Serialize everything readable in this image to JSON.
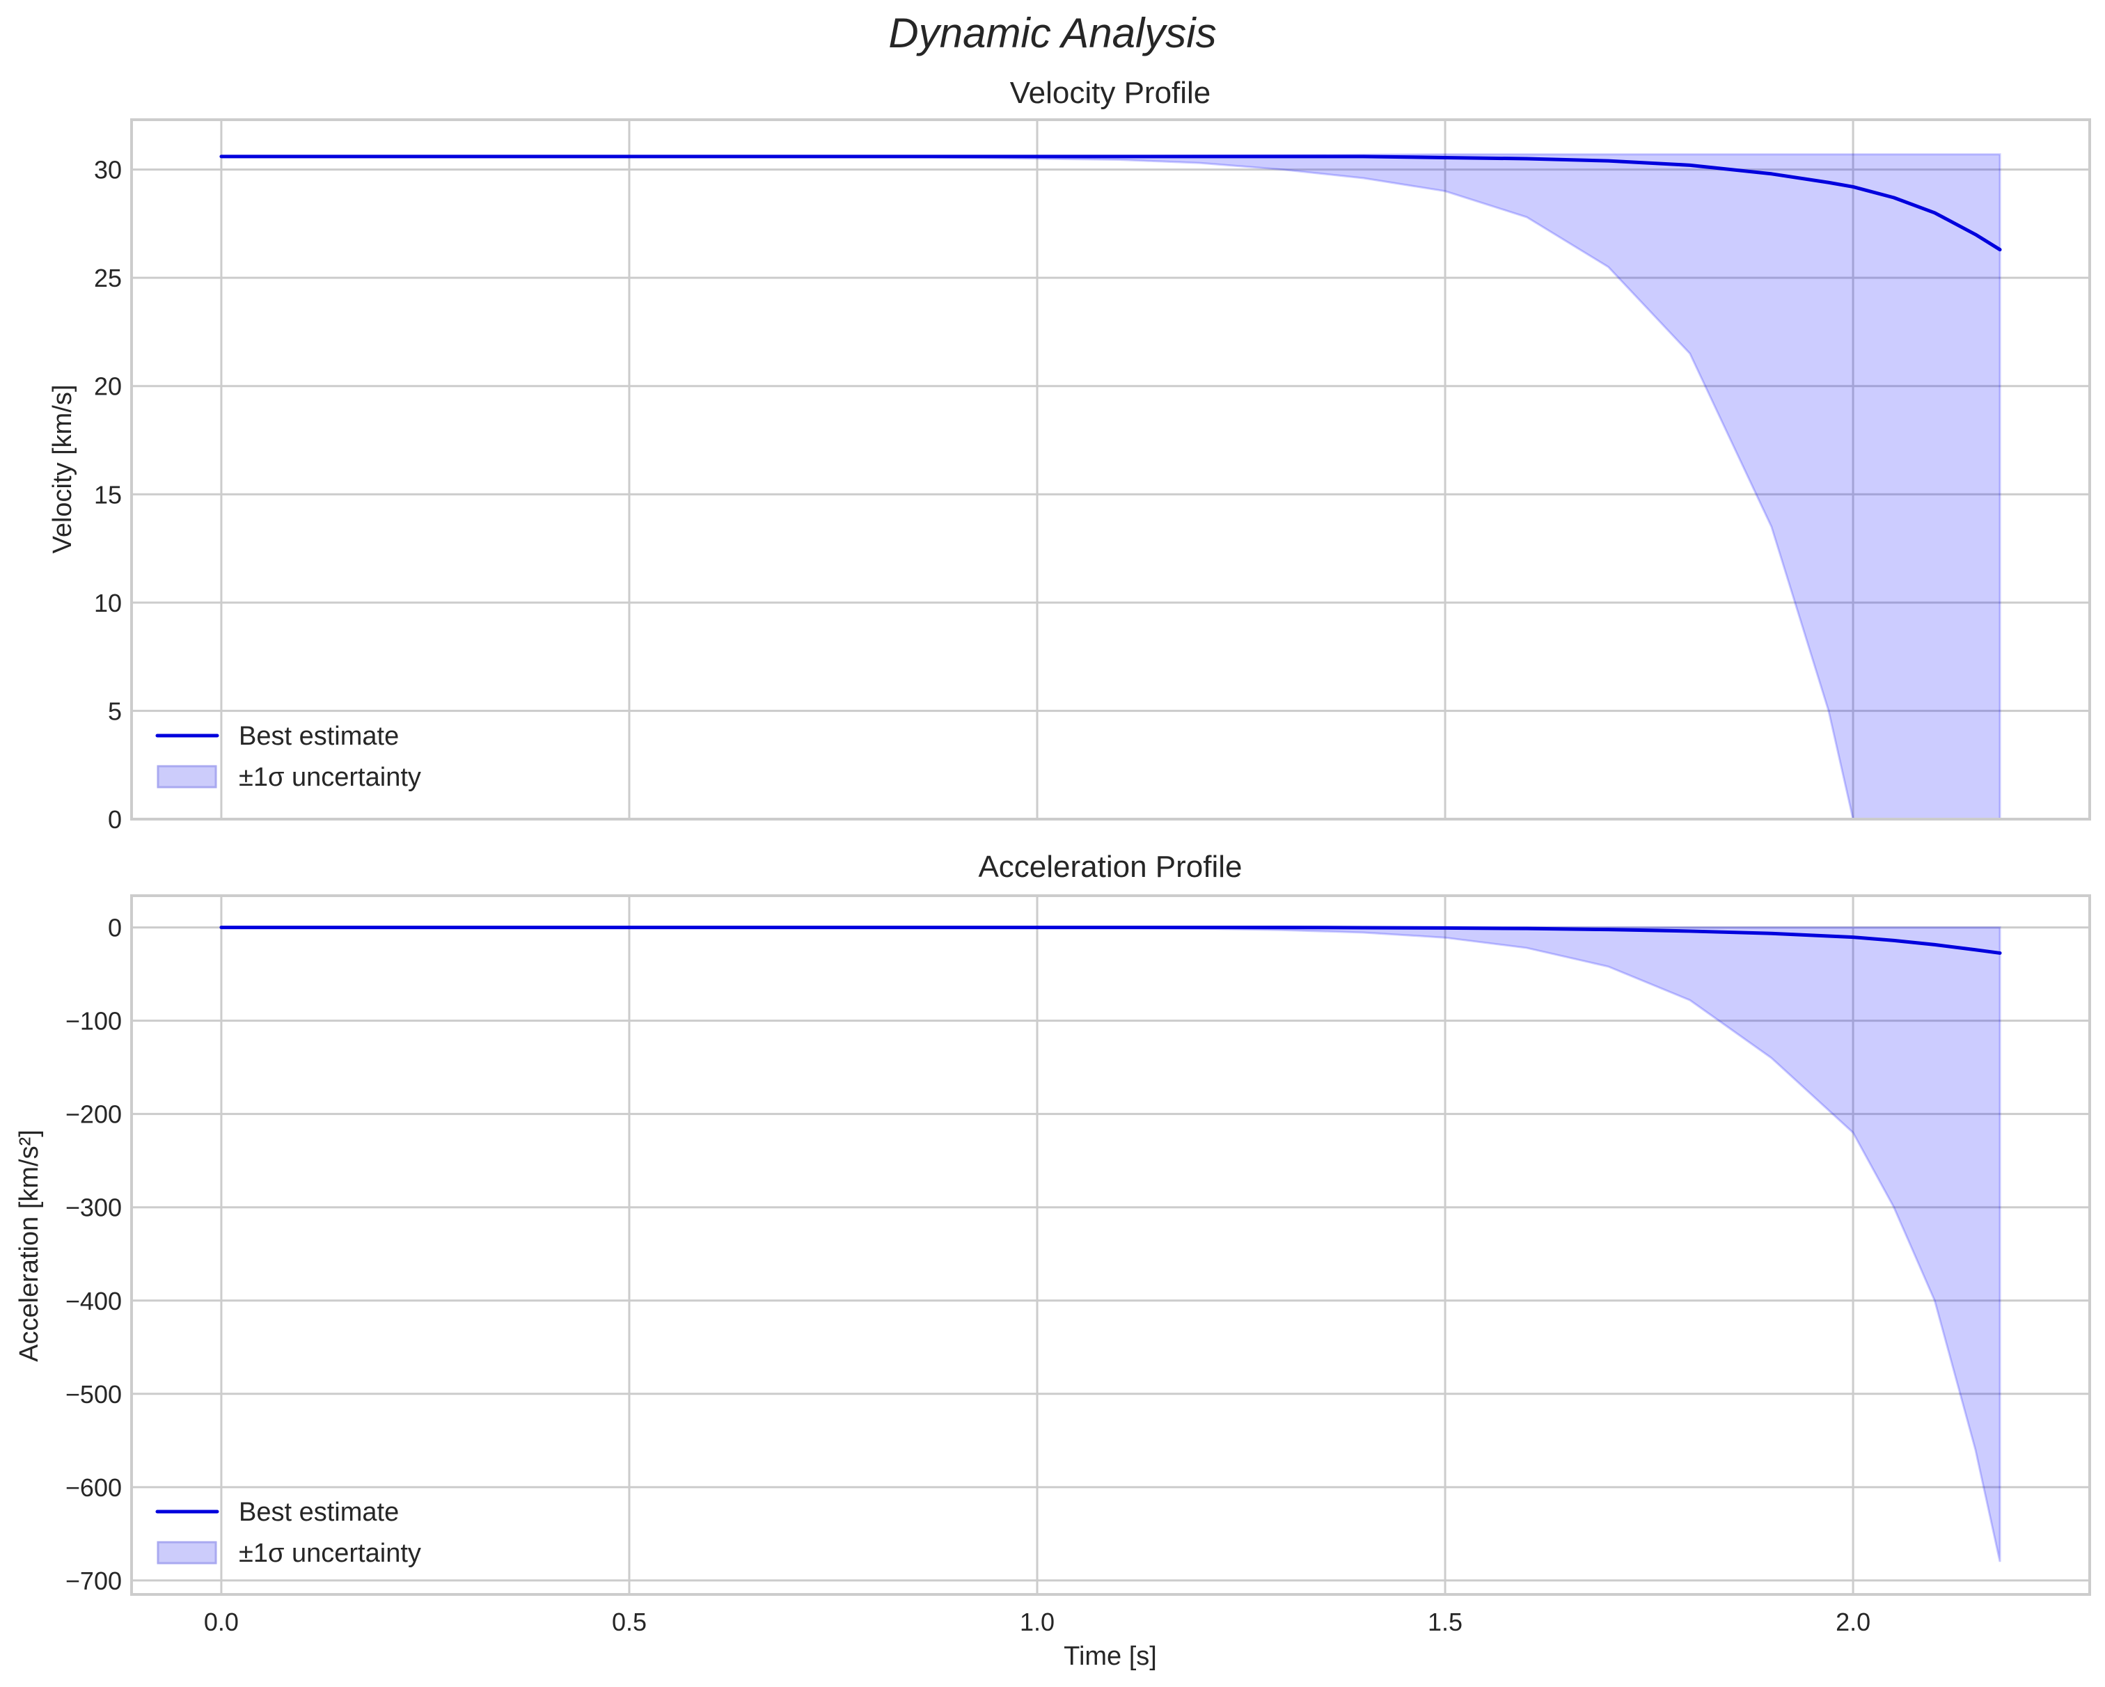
{
  "figure": {
    "suptitle": "Dynamic Analysis"
  },
  "chart_data": [
    {
      "type": "line",
      "title": "Velocity Profile",
      "xlabel": "",
      "ylabel": "Velocity [km/s]",
      "xlim": [
        -0.11,
        2.29
      ],
      "ylim": [
        0,
        32.3
      ],
      "xticks": [
        0.0,
        0.5,
        1.0,
        1.5,
        2.0
      ],
      "xtick_labels": [
        "0.0",
        "0.5",
        "1.0",
        "1.5",
        "2.0"
      ],
      "yticks": [
        0,
        5,
        10,
        15,
        20,
        25,
        30
      ],
      "ytick_labels": [
        "0",
        "5",
        "10",
        "15",
        "20",
        "25",
        "30"
      ],
      "grid": true,
      "legend": {
        "position": "lower left",
        "entries": [
          "Best estimate",
          "±1σ uncertainty"
        ]
      },
      "x": [
        0.0,
        0.2,
        0.4,
        0.6,
        0.8,
        1.0,
        1.1,
        1.2,
        1.3,
        1.4,
        1.5,
        1.6,
        1.7,
        1.8,
        1.9,
        1.97,
        2.0,
        2.05,
        2.1,
        2.15,
        2.18
      ],
      "series": [
        {
          "name": "Best estimate",
          "color": "#0000dd",
          "values": [
            30.6,
            30.6,
            30.6,
            30.6,
            30.6,
            30.6,
            30.6,
            30.6,
            30.6,
            30.6,
            30.55,
            30.5,
            30.4,
            30.2,
            29.8,
            29.4,
            29.2,
            28.7,
            28.0,
            27.0,
            26.3
          ]
        },
        {
          "name": "±1σ uncertainty (upper)",
          "color": "#0000ff",
          "alpha": 0.2,
          "values": [
            30.6,
            30.6,
            30.6,
            30.6,
            30.6,
            30.6,
            30.62,
            30.64,
            30.66,
            30.68,
            30.7,
            30.7,
            30.7,
            30.7,
            30.7,
            30.7,
            30.7,
            30.7,
            30.7,
            30.7,
            30.7
          ]
        },
        {
          "name": "±1σ uncertainty (lower)",
          "color": "#0000ff",
          "alpha": 0.2,
          "values": [
            30.6,
            30.6,
            30.6,
            30.6,
            30.6,
            30.5,
            30.45,
            30.3,
            30.0,
            29.6,
            29.0,
            27.8,
            25.5,
            21.5,
            13.5,
            5.0,
            0,
            0,
            0,
            0,
            0
          ]
        }
      ]
    },
    {
      "type": "line",
      "title": "Acceleration Profile",
      "xlabel": "Time [s]",
      "ylabel": "Acceleration [km/s²]",
      "xlim": [
        -0.11,
        2.29
      ],
      "ylim": [
        -715,
        34
      ],
      "xticks": [
        0.0,
        0.5,
        1.0,
        1.5,
        2.0
      ],
      "xtick_labels": [
        "0.0",
        "0.5",
        "1.0",
        "1.5",
        "2.0"
      ],
      "yticks": [
        0,
        -100,
        -200,
        -300,
        -400,
        -500,
        -600,
        -700
      ],
      "ytick_labels": [
        "0",
        "−100",
        "−200",
        "−300",
        "−400",
        "−500",
        "−600",
        "−700"
      ],
      "grid": true,
      "legend": {
        "position": "lower left",
        "entries": [
          "Best estimate",
          "±1σ uncertainty"
        ]
      },
      "x": [
        0.0,
        0.2,
        0.4,
        0.6,
        0.8,
        1.0,
        1.1,
        1.2,
        1.3,
        1.4,
        1.5,
        1.6,
        1.7,
        1.8,
        1.9,
        2.0,
        2.05,
        2.1,
        2.15,
        2.18
      ],
      "series": [
        {
          "name": "Best estimate",
          "color": "#0000dd",
          "values": [
            0,
            0,
            0,
            0,
            0,
            0,
            0,
            0,
            0,
            -0.3,
            -0.6,
            -1.2,
            -2.3,
            -4.0,
            -6.5,
            -10.5,
            -14,
            -18.5,
            -24,
            -27.5
          ]
        },
        {
          "name": "±1σ uncertainty (upper)",
          "color": "#0000ff",
          "alpha": 0.2,
          "values": [
            0,
            0,
            0,
            0,
            0,
            0,
            0,
            0,
            0,
            0,
            0,
            0,
            0,
            0,
            0,
            0,
            0,
            0,
            0,
            0
          ]
        },
        {
          "name": "±1σ uncertainty (lower)",
          "color": "#0000ff",
          "alpha": 0.2,
          "values": [
            0,
            0,
            0,
            0,
            0,
            -0.2,
            -0.6,
            -1.3,
            -2.8,
            -5.5,
            -11,
            -22,
            -42,
            -78,
            -140,
            -220,
            -300,
            -400,
            -560,
            -680
          ]
        }
      ]
    }
  ],
  "panels": {
    "top": {
      "title": "Velocity Profile",
      "ylabel": "Velocity [km/s]",
      "legend": {
        "line_label": "Best estimate",
        "band_label": "±1σ uncertainty"
      }
    },
    "bottom": {
      "title": "Acceleration Profile",
      "ylabel": "Acceleration [km/s²]",
      "xlabel": "Time [s]",
      "legend": {
        "line_label": "Best estimate",
        "band_label": "±1σ uncertainty"
      }
    }
  },
  "colors": {
    "line": "#0000dd",
    "band_fill": "#ccccfb",
    "band_edge": "#a9a9f0",
    "grid": "#cccccc",
    "spine": "#cccccc",
    "text": "#262626"
  }
}
